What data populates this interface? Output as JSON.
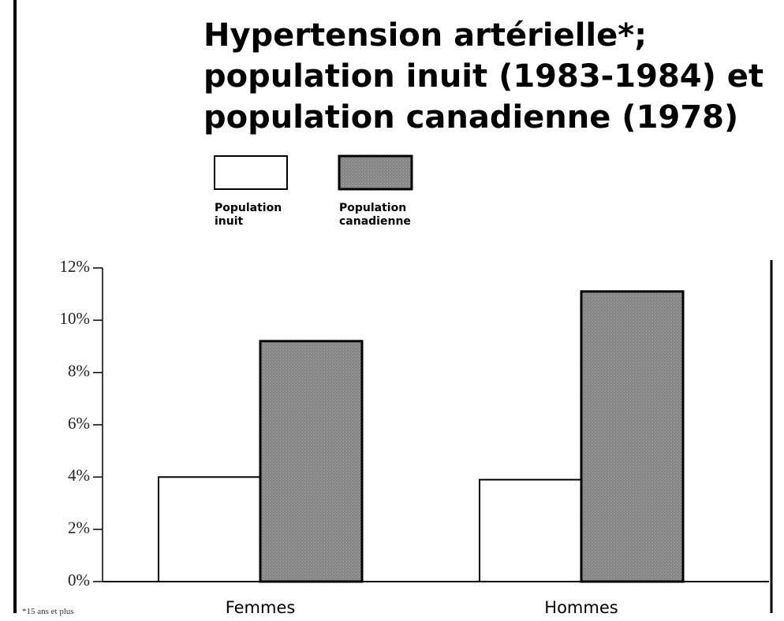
{
  "chart_data": {
    "type": "bar",
    "title": [
      "Hypertension artérielle*;",
      "population inuit (1983-1984) et",
      "population canadienne (1978)"
    ],
    "categories": [
      "Femmes",
      "Hommes"
    ],
    "series": [
      {
        "name": "Population inuit",
        "color": "#ffffff",
        "values": [
          4.0,
          3.9
        ]
      },
      {
        "name": "Population canadienne",
        "color": "#8c8c8c",
        "values": [
          9.2,
          11.1
        ]
      }
    ],
    "ylim": [
      0,
      12
    ],
    "yticks": [
      {
        "value": 0,
        "label": "0%"
      },
      {
        "value": 2,
        "label": "2%"
      },
      {
        "value": 4,
        "label": "4%"
      },
      {
        "value": 6,
        "label": "6%"
      },
      {
        "value": 8,
        "label": "8%"
      },
      {
        "value": 10,
        "label": "10%"
      },
      {
        "value": 12,
        "label": "12%"
      }
    ],
    "footnote": "*15 ans et plus"
  }
}
